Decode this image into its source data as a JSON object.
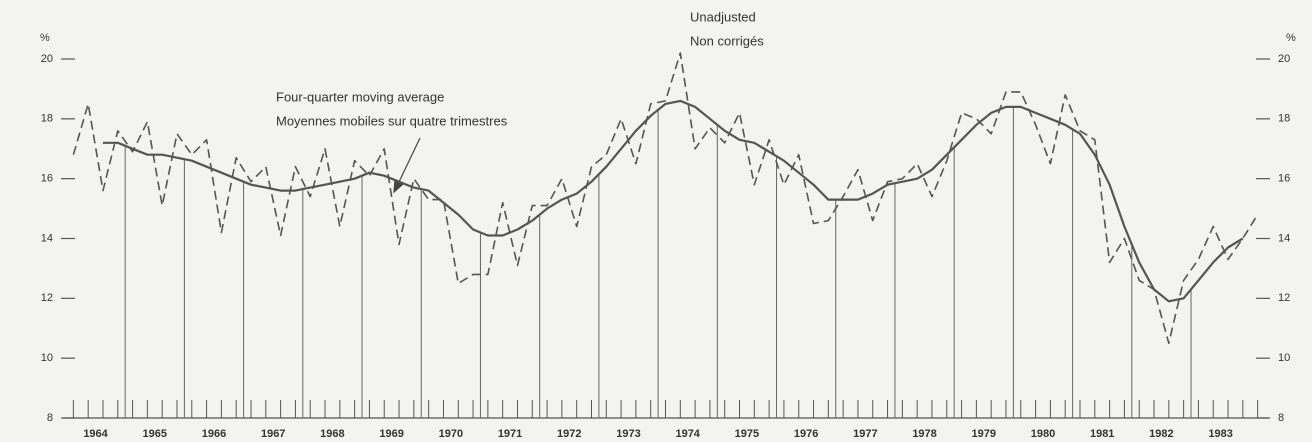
{
  "chart_data": {
    "type": "line",
    "y_unit": "%",
    "x": [
      1964.125,
      1964.375,
      1964.625,
      1964.875,
      1965.125,
      1965.375,
      1965.625,
      1965.875,
      1966.125,
      1966.375,
      1966.625,
      1966.875,
      1967.125,
      1967.375,
      1967.625,
      1967.875,
      1968.125,
      1968.375,
      1968.625,
      1968.875,
      1969.125,
      1969.375,
      1969.625,
      1969.875,
      1970.125,
      1970.375,
      1970.625,
      1970.875,
      1971.125,
      1971.375,
      1971.625,
      1971.875,
      1972.125,
      1972.375,
      1972.625,
      1972.875,
      1973.125,
      1973.375,
      1973.625,
      1973.875,
      1974.125,
      1974.375,
      1974.625,
      1974.875,
      1975.125,
      1975.375,
      1975.625,
      1975.875,
      1976.125,
      1976.375,
      1976.625,
      1976.875,
      1977.125,
      1977.375,
      1977.625,
      1977.875,
      1978.125,
      1978.375,
      1978.625,
      1978.875,
      1979.125,
      1979.375,
      1979.625,
      1979.875,
      1980.125,
      1980.375,
      1980.625,
      1980.875,
      1981.125,
      1981.375,
      1981.625,
      1981.875,
      1982.125,
      1982.375,
      1982.625,
      1982.875,
      1983.125,
      1983.375,
      1983.625,
      1983.875,
      1984.125
    ],
    "series": [
      {
        "name": "Unadjusted",
        "name_fr": "Non corrigés",
        "color": "#555555",
        "dashed": true,
        "values": [
          16.8,
          18.5,
          15.6,
          17.6,
          16.9,
          17.9,
          15.1,
          17.5,
          16.8,
          17.3,
          14.2,
          16.7,
          15.9,
          16.4,
          14.1,
          16.4,
          15.4,
          17.0,
          14.4,
          16.6,
          16.1,
          17.0,
          13.8,
          16.0,
          15.3,
          15.3,
          12.5,
          12.8,
          12.8,
          15.2,
          13.1,
          15.1,
          15.1,
          16.0,
          14.4,
          16.4,
          16.8,
          18.0,
          16.5,
          18.5,
          18.6,
          20.2,
          17.0,
          17.7,
          17.2,
          18.2,
          15.8,
          17.3,
          15.8,
          16.8,
          14.5,
          14.6,
          15.4,
          16.3,
          14.6,
          15.9,
          16.0,
          16.5,
          15.4,
          16.6,
          18.2,
          18.0,
          17.5,
          18.9,
          18.9,
          17.8,
          16.5,
          18.8,
          17.6,
          17.3,
          13.2,
          14.0,
          12.6,
          12.3,
          10.5,
          12.6,
          13.3,
          14.4,
          13.3,
          14.0,
          14.8
        ]
      },
      {
        "name": "Four-quarter moving average",
        "name_fr": "Moyennes mobiles sur quatre trimestres",
        "color": "#555555",
        "dashed": false,
        "values": [
          null,
          null,
          17.2,
          17.2,
          17.0,
          16.8,
          16.8,
          16.7,
          16.6,
          16.4,
          16.2,
          16.0,
          15.8,
          15.7,
          15.6,
          15.6,
          15.7,
          15.8,
          15.9,
          16.0,
          16.2,
          16.1,
          15.9,
          15.7,
          15.6,
          15.2,
          14.8,
          14.3,
          14.1,
          14.1,
          14.3,
          14.6,
          15.0,
          15.3,
          15.5,
          15.9,
          16.4,
          17.0,
          17.6,
          18.1,
          18.5,
          18.6,
          18.4,
          18.0,
          17.6,
          17.3,
          17.2,
          16.9,
          16.6,
          16.2,
          15.8,
          15.3,
          15.3,
          15.3,
          15.5,
          15.8,
          15.9,
          16.0,
          16.3,
          16.8,
          17.3,
          17.8,
          18.2,
          18.4,
          18.4,
          18.2,
          18.0,
          17.8,
          17.5,
          16.8,
          15.8,
          14.4,
          13.2,
          12.3,
          11.9,
          12.0,
          12.6,
          13.2,
          13.7,
          14.0,
          null
        ]
      }
    ],
    "xlim": [
      1963.95,
      1984.3
    ],
    "xticks": [
      {
        "value": 1964.5,
        "label": "1964"
      },
      {
        "value": 1965.5,
        "label": "1965"
      },
      {
        "value": 1966.5,
        "label": "1966"
      },
      {
        "value": 1967.5,
        "label": "1967"
      },
      {
        "value": 1968.5,
        "label": "1968"
      },
      {
        "value": 1969.5,
        "label": "1969"
      },
      {
        "value": 1970.5,
        "label": "1970"
      },
      {
        "value": 1971.5,
        "label": "1971"
      },
      {
        "value": 1972.5,
        "label": "1972"
      },
      {
        "value": 1973.5,
        "label": "1973"
      },
      {
        "value": 1974.5,
        "label": "1974"
      },
      {
        "value": 1975.5,
        "label": "1975"
      },
      {
        "value": 1976.5,
        "label": "1976"
      },
      {
        "value": 1977.5,
        "label": "1977"
      },
      {
        "value": 1978.5,
        "label": "1978"
      },
      {
        "value": 1979.5,
        "label": "1979"
      },
      {
        "value": 1980.5,
        "label": "1980"
      },
      {
        "value": 1981.5,
        "label": "1981"
      },
      {
        "value": 1982.5,
        "label": "1982"
      },
      {
        "value": 1983.5,
        "label": "1983"
      }
    ],
    "ylim": [
      8,
      20
    ],
    "yticks": [
      8,
      10,
      12,
      14,
      16,
      18,
      20
    ],
    "y2lim": [
      8,
      20
    ],
    "y2ticks": [
      8,
      10,
      12,
      14,
      16,
      18,
      20
    ]
  }
}
